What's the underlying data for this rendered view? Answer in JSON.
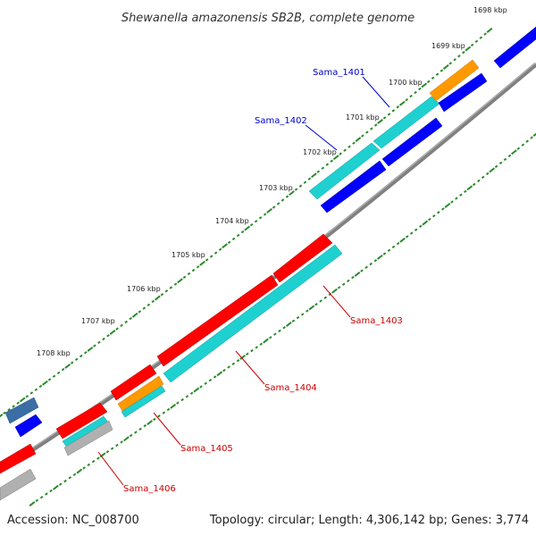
{
  "title": "Shewanella amazonensis SB2B, complete genome",
  "footer": {
    "accession": "Accession: NC_008700",
    "topology": "Topology: circular; Length: 4,306,142 bp; Genes: 3,774"
  },
  "colors": {
    "backbone": "#808080",
    "tick": "#2a8a2a",
    "cds": "#ff0000",
    "feature_cyan": "#1fd0d0",
    "blue": "#0000ff",
    "steel_blue": "#3a6ea5",
    "orange": "#ff9900",
    "gray": "#b0b0b0",
    "label_forward": "#0000cc",
    "label_reverse": "#cc0000"
  },
  "kbp_labels": [
    "1698 kbp",
    "1699 kbp",
    "1700 kbp",
    "1701 kbp",
    "1702 kbp",
    "1703 kbp",
    "1704 kbp",
    "1705 kbp",
    "1706 kbp",
    "1707 kbp",
    "1708 kbp"
  ],
  "gene_labels": [
    "Sama_1401",
    "Sama_1402",
    "Sama_1403",
    "Sama_1404",
    "Sama_1405",
    "Sama_1406"
  ]
}
